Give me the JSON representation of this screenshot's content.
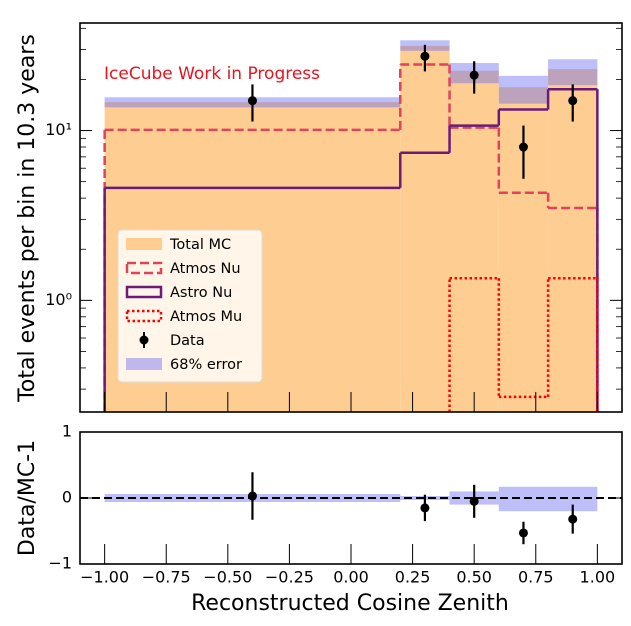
{
  "chart_data": [
    {
      "type": "histogram",
      "ylabel": "Total events per bin in 10.3 years",
      "annotation": "IceCube Work in Progress",
      "annotation_color": "#e8141e",
      "bins": [
        -1.0,
        0.2,
        0.4,
        0.6,
        0.8,
        1.0
      ],
      "xlim": [
        -1.1,
        1.1
      ],
      "xticks": [
        -1.0,
        -0.75,
        -0.5,
        -0.25,
        0.0,
        0.25,
        0.5,
        0.75,
        1.0
      ],
      "ylim": [
        0.22,
        43
      ],
      "log_y": true,
      "yticks": [
        {
          "value": 1,
          "label": "10⁰"
        },
        {
          "value": 10,
          "label": "10¹"
        }
      ],
      "yminorticks": [
        0.3,
        0.4,
        0.5,
        0.6,
        0.7,
        0.8,
        0.9,
        2,
        3,
        4,
        5,
        6,
        7,
        8,
        9,
        20,
        30,
        40
      ],
      "legend": "lower left",
      "series": [
        {
          "name": "Total MC",
          "style": "fill",
          "color": "#fdcd92",
          "values": [
            14.7,
            31.5,
            22.5,
            18,
            23
          ]
        },
        {
          "name": "Atmos Nu",
          "style": "dashed",
          "color": "#e0435c",
          "values": [
            10.1,
            24.5,
            10.4,
            4.3,
            3.5
          ]
        },
        {
          "name": "Astro Nu",
          "style": "solid",
          "color": "#6a1b7a",
          "values": [
            4.6,
            7.4,
            10.7,
            13.3,
            17.5
          ]
        },
        {
          "name": "Atmos Mu",
          "style": "dotted",
          "color": "#ff0000",
          "values": [
            null,
            null,
            1.35,
            0.27,
            1.35
          ]
        },
        {
          "name": "Data",
          "style": "errorbar",
          "color": "#000000",
          "x": [
            -0.4,
            0.3,
            0.5,
            0.7,
            0.9
          ],
          "values": [
            15,
            27.4,
            21.2,
            8.0,
            15
          ],
          "lower": [
            11.3,
            22.3,
            16.5,
            5.2,
            11.3
          ],
          "upper": [
            18.7,
            32,
            25.6,
            10.7,
            18.7
          ]
        },
        {
          "name": "68% error",
          "style": "band",
          "color": "rgba(110,110,240,0.45)",
          "lower": [
            13.7,
            29.5,
            19,
            14.4,
            18.5
          ],
          "upper": [
            15.7,
            34,
            25,
            21,
            26.3
          ]
        }
      ]
    },
    {
      "type": "histogram",
      "xlabel": "Reconstructed Cosine Zenith",
      "ylabel": "Data/MC-1",
      "bins": [
        -1.0,
        0.2,
        0.4,
        0.6,
        0.8,
        1.0
      ],
      "xlim": [
        -1.1,
        1.1
      ],
      "xticks": [
        {
          "value": -1.0,
          "label": "−1.00"
        },
        {
          "value": -0.75,
          "label": "−0.75"
        },
        {
          "value": -0.5,
          "label": "−0.50"
        },
        {
          "value": -0.25,
          "label": "−0.25"
        },
        {
          "value": 0.0,
          "label": "0.00"
        },
        {
          "value": 0.25,
          "label": "0.25"
        },
        {
          "value": 0.5,
          "label": "0.50"
        },
        {
          "value": 0.75,
          "label": "0.75"
        },
        {
          "value": 1.0,
          "label": "1.00"
        }
      ],
      "ylim": [
        -1,
        1
      ],
      "yticks": [
        {
          "value": -1,
          "label": "−1"
        },
        0,
        1
      ],
      "reference_line": 0,
      "series": [
        {
          "style": "band",
          "color": "rgba(110,110,240,0.45)",
          "lower": [
            -0.06,
            -0.03,
            -0.1,
            -0.2,
            -0.2
          ],
          "upper": [
            0.06,
            0.03,
            0.1,
            0.17,
            0.17
          ]
        },
        {
          "style": "errorbar",
          "color": "#000000",
          "x": [
            -0.4,
            0.3,
            0.5,
            0.7,
            0.9
          ],
          "values": [
            0.03,
            -0.15,
            -0.05,
            -0.53,
            -0.32
          ],
          "lower": [
            -0.33,
            -0.35,
            -0.3,
            -0.7,
            -0.54
          ],
          "upper": [
            0.39,
            0.05,
            0.2,
            -0.36,
            -0.1
          ]
        }
      ]
    }
  ]
}
